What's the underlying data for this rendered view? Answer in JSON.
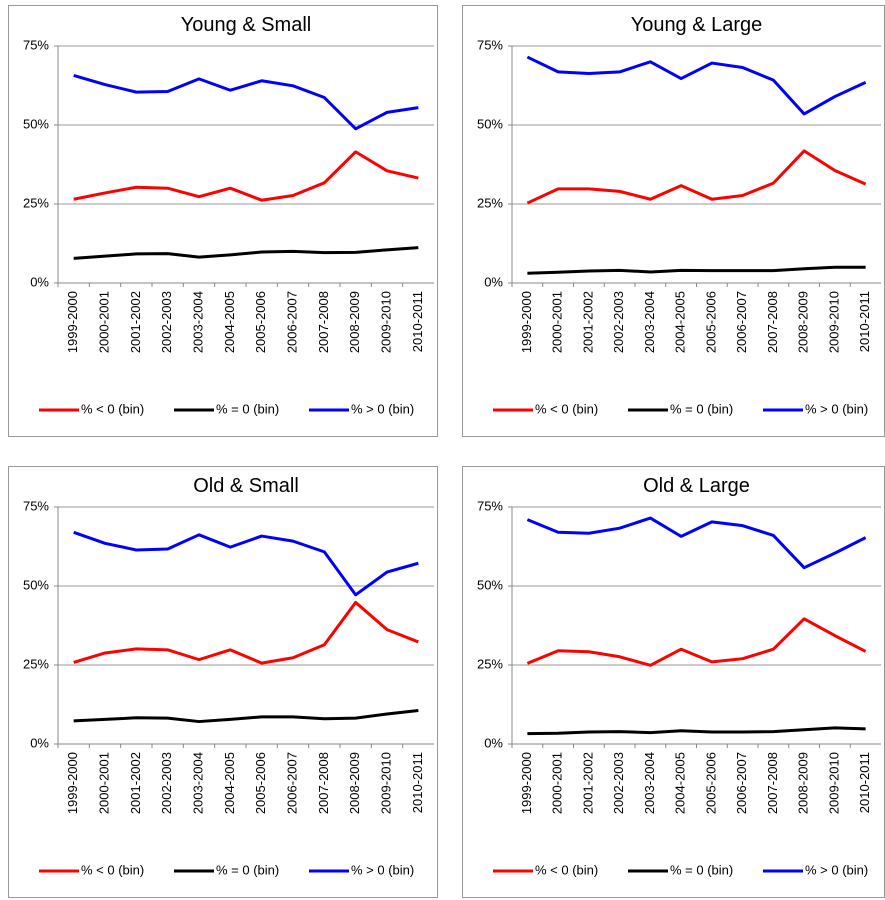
{
  "chart_data": [
    {
      "type": "line",
      "title": "Young & Small",
      "categories": [
        "1999-2000",
        "2000-2001",
        "2001-2002",
        "2002-2003",
        "2003-2004",
        "2004-2005",
        "2005-2006",
        "2006-2007",
        "2007-2008",
        "2008-2009",
        "2009-2010",
        "2010-2011"
      ],
      "series": [
        {
          "name": "% < 0 (bin)",
          "color": "#ff0000",
          "values": [
            26.5,
            28.5,
            30.3,
            30,
            27.3,
            30,
            26.2,
            27.7,
            31.7,
            41.5,
            35.5,
            33.2
          ]
        },
        {
          "name": "% = 0 (bin)",
          "color": "#000000",
          "values": [
            7.8,
            8.5,
            9.2,
            9.3,
            8.2,
            8.9,
            9.8,
            10,
            9.6,
            9.7,
            10.5,
            11.2
          ]
        },
        {
          "name": "% > 0 (bin)",
          "color": "#0000ff",
          "values": [
            65.7,
            62.8,
            60.4,
            60.6,
            64.6,
            61,
            64,
            62.4,
            58.7,
            48.8,
            54,
            55.5
          ]
        }
      ],
      "ylim": [
        0,
        75
      ],
      "yticks": [
        {
          "value": 0,
          "label": "0%"
        },
        {
          "value": 25,
          "label": "25%"
        },
        {
          "value": 50,
          "label": "50%"
        },
        {
          "value": 75,
          "label": "75%"
        }
      ],
      "grid": true,
      "legend": "bottom"
    },
    {
      "type": "line",
      "title": "Young & Large",
      "categories": [
        "1999-2000",
        "2000-2001",
        "2001-2002",
        "2002-2003",
        "2003-2004",
        "2004-2005",
        "2005-2006",
        "2006-2007",
        "2007-2008",
        "2008-2009",
        "2009-2010",
        "2010-2011"
      ],
      "series": [
        {
          "name": "% < 0 (bin)",
          "color": "#ff0000",
          "values": [
            25.3,
            29.8,
            29.8,
            29,
            26.5,
            30.8,
            26.5,
            27.7,
            31.6,
            41.8,
            35.6,
            31.3
          ]
        },
        {
          "name": "% = 0 (bin)",
          "color": "#000000",
          "values": [
            3.1,
            3.4,
            3.8,
            4,
            3.5,
            4,
            3.9,
            3.9,
            3.9,
            4.5,
            5,
            5
          ]
        },
        {
          "name": "% > 0 (bin)",
          "color": "#0000ff",
          "values": [
            71.5,
            66.8,
            66.3,
            66.8,
            70,
            64.7,
            69.6,
            68.2,
            64.2,
            53.5,
            59,
            63.5
          ]
        }
      ],
      "ylim": [
        0,
        75
      ],
      "yticks": [
        {
          "value": 0,
          "label": "0%"
        },
        {
          "value": 25,
          "label": "25%"
        },
        {
          "value": 50,
          "label": "50%"
        },
        {
          "value": 75,
          "label": "75%"
        }
      ],
      "grid": true,
      "legend": "bottom"
    },
    {
      "type": "line",
      "title": "Old & Small",
      "categories": [
        "1999-2000",
        "2000-2001",
        "2001-2002",
        "2002-2003",
        "2003-2004",
        "2004-2005",
        "2005-2006",
        "2006-2007",
        "2007-2008",
        "2008-2009",
        "2009-2010",
        "2010-2011"
      ],
      "series": [
        {
          "name": "% < 0 (bin)",
          "color": "#ff0000",
          "values": [
            25.8,
            28.8,
            30.1,
            29.8,
            26.7,
            29.8,
            25.6,
            27.3,
            31.4,
            44.8,
            36.2,
            32.3
          ]
        },
        {
          "name": "% = 0 (bin)",
          "color": "#000000",
          "values": [
            7.3,
            7.8,
            8.3,
            8.2,
            7.1,
            7.8,
            8.6,
            8.6,
            8,
            8.2,
            9.5,
            10.6
          ]
        },
        {
          "name": "% > 0 (bin)",
          "color": "#0000ff",
          "values": [
            67,
            63.5,
            61.4,
            61.7,
            66.2,
            62.3,
            65.8,
            64.2,
            60.8,
            47.2,
            54.4,
            57.2
          ]
        }
      ],
      "ylim": [
        0,
        75
      ],
      "yticks": [
        {
          "value": 0,
          "label": "0%"
        },
        {
          "value": 25,
          "label": "25%"
        },
        {
          "value": 50,
          "label": "50%"
        },
        {
          "value": 75,
          "label": "75%"
        }
      ],
      "grid": true,
      "legend": "bottom"
    },
    {
      "type": "line",
      "title": "Old & Large",
      "categories": [
        "1999-2000",
        "2000-2001",
        "2001-2002",
        "2002-2003",
        "2003-2004",
        "2004-2005",
        "2005-2006",
        "2006-2007",
        "2007-2008",
        "2008-2009",
        "2009-2010",
        "2010-2011"
      ],
      "series": [
        {
          "name": "% < 0 (bin)",
          "color": "#ff0000",
          "values": [
            25.5,
            29.5,
            29.2,
            27.6,
            24.9,
            30,
            26,
            27,
            30,
            39.6,
            34.3,
            29.3
          ]
        },
        {
          "name": "% = 0 (bin)",
          "color": "#000000",
          "values": [
            3.3,
            3.4,
            3.8,
            3.9,
            3.6,
            4.2,
            3.8,
            3.8,
            3.9,
            4.5,
            5.1,
            4.8
          ]
        },
        {
          "name": "% > 0 (bin)",
          "color": "#0000ff",
          "values": [
            71,
            67,
            66.7,
            68.3,
            71.5,
            65.7,
            70.3,
            69.1,
            66,
            55.8,
            60.4,
            65.3
          ]
        }
      ],
      "ylim": [
        0,
        75
      ],
      "yticks": [
        {
          "value": 0,
          "label": "0%"
        },
        {
          "value": 25,
          "label": "25%"
        },
        {
          "value": 50,
          "label": "50%"
        },
        {
          "value": 75,
          "label": "75%"
        }
      ],
      "grid": true,
      "legend": "bottom"
    }
  ]
}
